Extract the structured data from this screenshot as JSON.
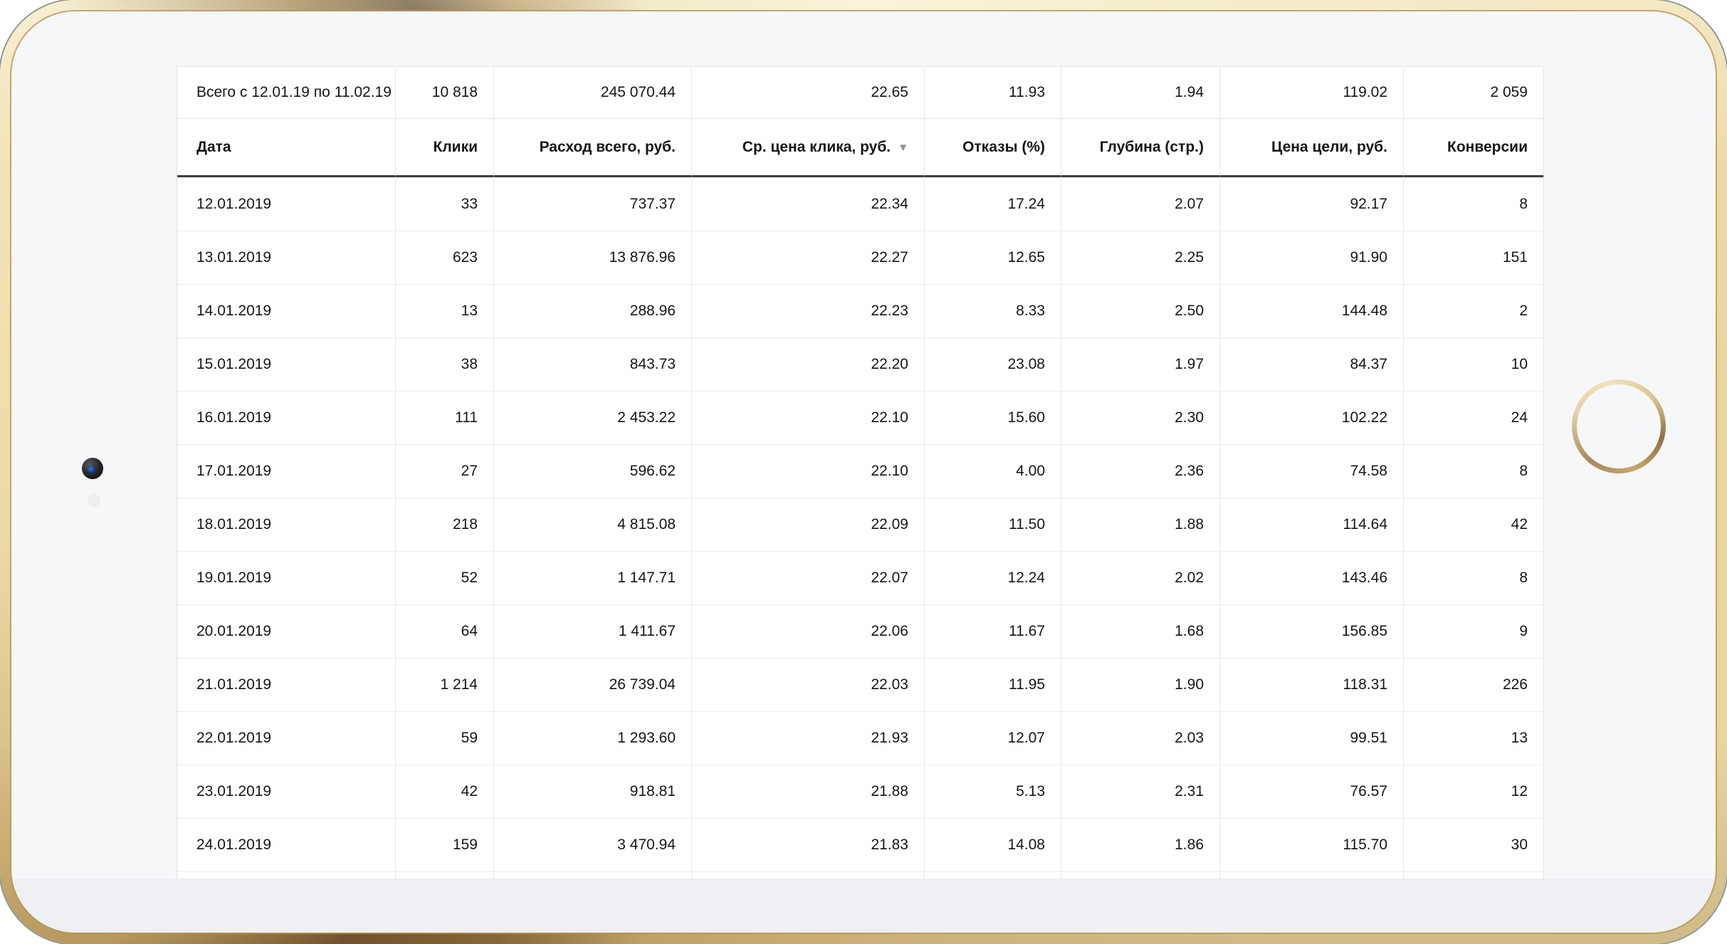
{
  "device": {
    "type": "gold tablet mockup",
    "accent_gold": "#e9d7a3",
    "bezel_color": "#f6f7f9",
    "home_icon": "home-button-ring",
    "camera_icon": "front-camera"
  },
  "table": {
    "summary": {
      "label": "Всего с 12.01.19 по 11.02.19",
      "values": [
        "10 818",
        "245 070.44",
        "22.65",
        "11.93",
        "1.94",
        "119.02",
        "2 059"
      ]
    },
    "columns": [
      {
        "label": "Дата"
      },
      {
        "label": "Клики"
      },
      {
        "label": "Расход всего, руб."
      },
      {
        "label": "Ср. цена клика, руб.",
        "sort": "desc"
      },
      {
        "label": "Отказы (%)"
      },
      {
        "label": "Глубина (стр.)"
      },
      {
        "label": "Цена цели, руб."
      },
      {
        "label": "Конверсии"
      }
    ],
    "sort_icon": "▼",
    "rows": [
      [
        "12.01.2019",
        "33",
        "737.37",
        "22.34",
        "17.24",
        "2.07",
        "92.17",
        "8"
      ],
      [
        "13.01.2019",
        "623",
        "13 876.96",
        "22.27",
        "12.65",
        "2.25",
        "91.90",
        "151"
      ],
      [
        "14.01.2019",
        "13",
        "288.96",
        "22.23",
        "8.33",
        "2.50",
        "144.48",
        "2"
      ],
      [
        "15.01.2019",
        "38",
        "843.73",
        "22.20",
        "23.08",
        "1.97",
        "84.37",
        "10"
      ],
      [
        "16.01.2019",
        "111",
        "2 453.22",
        "22.10",
        "15.60",
        "2.30",
        "102.22",
        "24"
      ],
      [
        "17.01.2019",
        "27",
        "596.62",
        "22.10",
        "4.00",
        "2.36",
        "74.58",
        "8"
      ],
      [
        "18.01.2019",
        "218",
        "4 815.08",
        "22.09",
        "11.50",
        "1.88",
        "114.64",
        "42"
      ],
      [
        "19.01.2019",
        "52",
        "1 147.71",
        "22.07",
        "12.24",
        "2.02",
        "143.46",
        "8"
      ],
      [
        "20.01.2019",
        "64",
        "1 411.67",
        "22.06",
        "11.67",
        "1.68",
        "156.85",
        "9"
      ],
      [
        "21.01.2019",
        "1 214",
        "26 739.04",
        "22.03",
        "11.95",
        "1.90",
        "118.31",
        "226"
      ],
      [
        "22.01.2019",
        "59",
        "1 293.60",
        "21.93",
        "12.07",
        "2.03",
        "99.51",
        "13"
      ],
      [
        "23.01.2019",
        "42",
        "918.81",
        "21.88",
        "5.13",
        "2.31",
        "76.57",
        "12"
      ],
      [
        "24.01.2019",
        "159",
        "3 470.94",
        "21.83",
        "14.08",
        "1.86",
        "115.70",
        "30"
      ]
    ]
  }
}
